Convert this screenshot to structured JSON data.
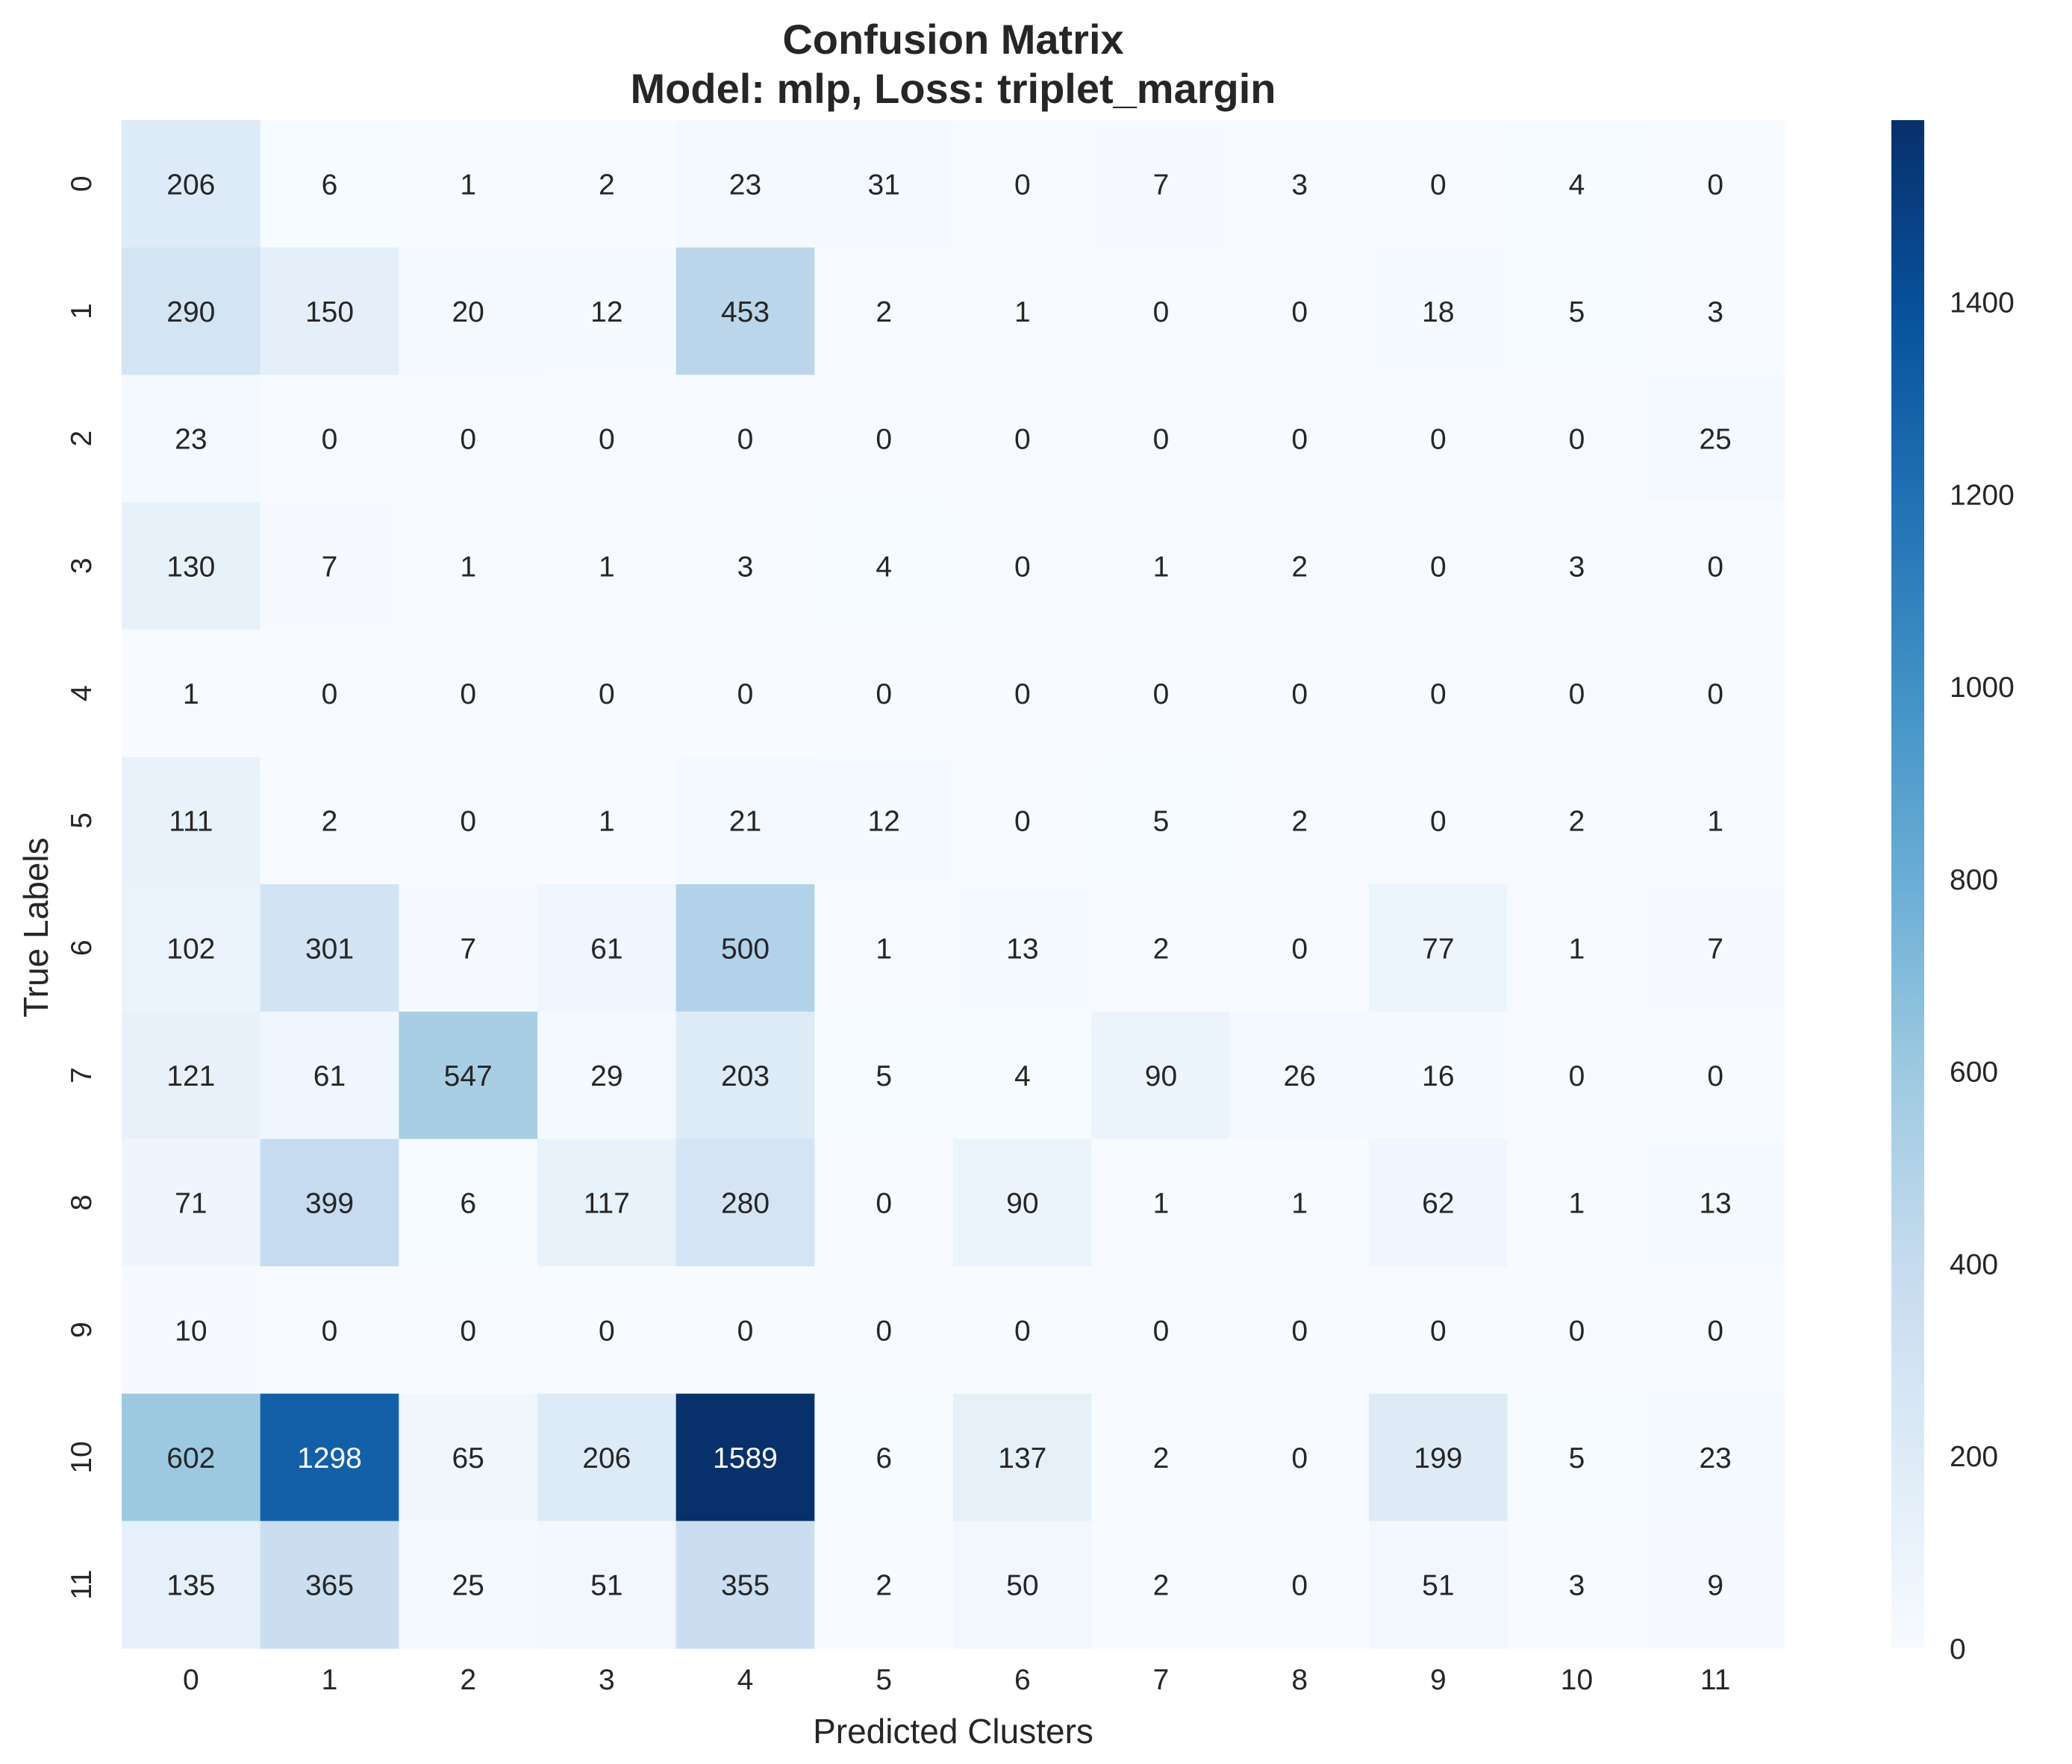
{
  "chart_data": {
    "type": "heatmap",
    "title_lines": [
      "Confusion Matrix",
      "Model: mlp, Loss: triplet_margin"
    ],
    "xlabel": "Predicted Clusters",
    "ylabel": "True Labels",
    "x_categories": [
      "0",
      "1",
      "2",
      "3",
      "4",
      "5",
      "6",
      "7",
      "8",
      "9",
      "10",
      "11"
    ],
    "y_categories": [
      "0",
      "1",
      "2",
      "3",
      "4",
      "5",
      "6",
      "7",
      "8",
      "9",
      "10",
      "11"
    ],
    "values": [
      [
        206,
        6,
        1,
        2,
        23,
        31,
        0,
        7,
        3,
        0,
        4,
        0
      ],
      [
        290,
        150,
        20,
        12,
        453,
        2,
        1,
        0,
        0,
        18,
        5,
        3
      ],
      [
        23,
        0,
        0,
        0,
        0,
        0,
        0,
        0,
        0,
        0,
        0,
        25
      ],
      [
        130,
        7,
        1,
        1,
        3,
        4,
        0,
        1,
        2,
        0,
        3,
        0
      ],
      [
        1,
        0,
        0,
        0,
        0,
        0,
        0,
        0,
        0,
        0,
        0,
        0
      ],
      [
        111,
        2,
        0,
        1,
        21,
        12,
        0,
        5,
        2,
        0,
        2,
        1
      ],
      [
        102,
        301,
        7,
        61,
        500,
        1,
        13,
        2,
        0,
        77,
        1,
        7
      ],
      [
        121,
        61,
        547,
        29,
        203,
        5,
        4,
        90,
        26,
        16,
        0,
        0
      ],
      [
        71,
        399,
        6,
        117,
        280,
        0,
        90,
        1,
        1,
        62,
        1,
        13
      ],
      [
        10,
        0,
        0,
        0,
        0,
        0,
        0,
        0,
        0,
        0,
        0,
        0
      ],
      [
        602,
        1298,
        65,
        206,
        1589,
        6,
        137,
        2,
        0,
        199,
        5,
        23
      ],
      [
        135,
        365,
        25,
        51,
        355,
        2,
        50,
        2,
        0,
        51,
        3,
        9
      ]
    ],
    "colormap": "Blues",
    "vmin": 0,
    "vmax": 1589,
    "colorbar_ticks": [
      0,
      200,
      400,
      600,
      800,
      1000,
      1200,
      1400
    ],
    "grid": false,
    "legend": "colorbar-right"
  }
}
